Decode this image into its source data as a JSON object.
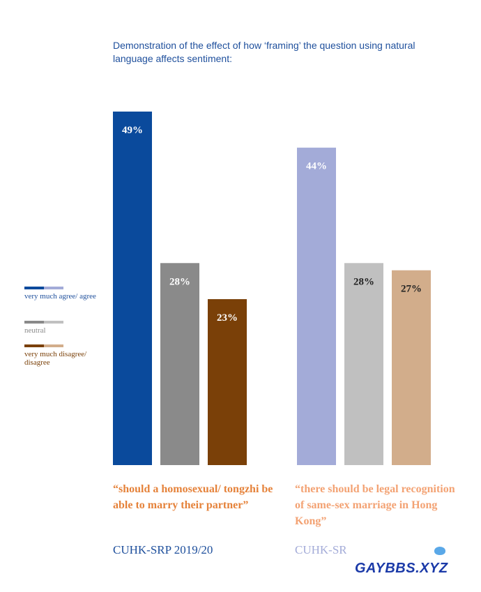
{
  "title": "Demonstration of the effect of how ‘framing’ the question using natural language affects sentiment:",
  "legend": [
    {
      "label": "very much agree/ agree",
      "colors": [
        "#0a4a9c",
        "#a3abd8"
      ],
      "text_color": "#1e4f9c"
    },
    {
      "label": "neutral",
      "colors": [
        "#8a8a8a",
        "#c0c0c0"
      ],
      "text_color": "#8a8a8a"
    },
    {
      "label": "very much disagree/ disagree",
      "colors": [
        "#7a4008",
        "#d2ad8b"
      ],
      "text_color": "#7a4008"
    }
  ],
  "groups": [
    {
      "caption": "“should a homosexual/ tongzhi be able to marry their partner”",
      "source": "CUHK-SRP  2019/20",
      "caption_color": "#e5823a",
      "source_color": "#1e4f9c"
    },
    {
      "caption": "“there should be legal recognition of same-sex marriage in Hong Kong”",
      "source": "CUHK-SR",
      "caption_color": "#f3a273",
      "source_color": "#a3abd8"
    }
  ],
  "watermark": {
    "text": "GAYBBS.XYZ"
  },
  "chart_data": {
    "type": "bar",
    "categories": [
      "very much agree/ agree",
      "neutral",
      "very much disagree/ disagree"
    ],
    "series": [
      {
        "values": [
          49,
          28,
          23
        ],
        "colors": [
          "#0a4a9c",
          "#8a8a8a",
          "#7a4008"
        ],
        "label_colors": [
          "#ffffff",
          "#ffffff",
          "#ffffff"
        ]
      },
      {
        "values": [
          44,
          28,
          27
        ],
        "colors": [
          "#a3abd8",
          "#c0c0c0",
          "#d2ad8b"
        ],
        "label_colors": [
          "#ffffff",
          "#222222",
          "#222222"
        ]
      }
    ],
    "unit": "%",
    "ylim": [
      0,
      49
    ],
    "grid": false
  }
}
